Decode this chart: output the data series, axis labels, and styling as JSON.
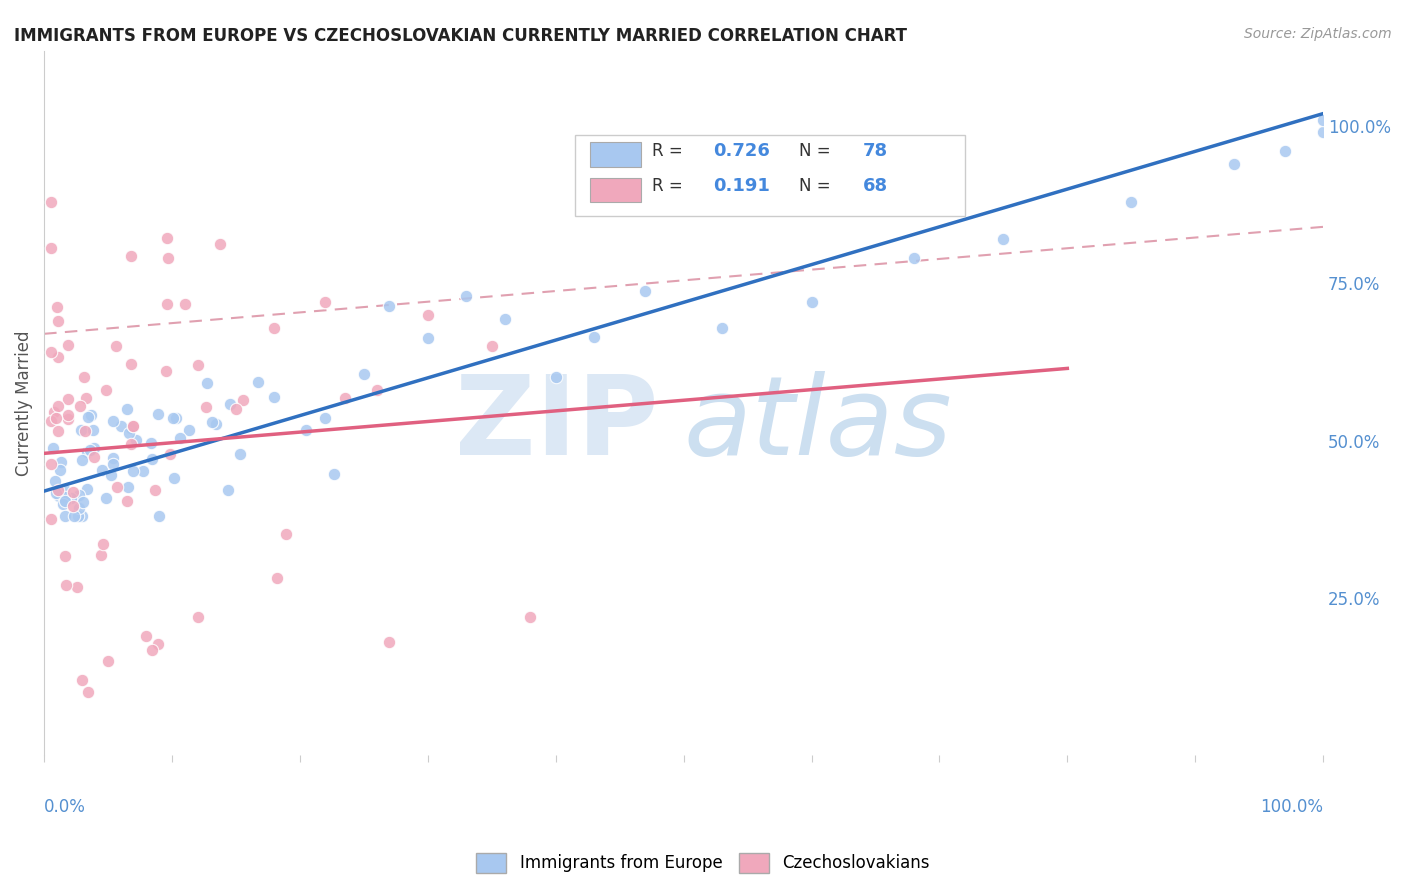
{
  "title": "IMMIGRANTS FROM EUROPE VS CZECHOSLOVAKIAN CURRENTLY MARRIED CORRELATION CHART",
  "source": "Source: ZipAtlas.com",
  "ylabel": "Currently Married",
  "right_yticks": [
    "100.0%",
    "75.0%",
    "50.0%",
    "25.0%"
  ],
  "right_ytick_vals": [
    1.0,
    0.75,
    0.5,
    0.25
  ],
  "legend_blue_label": "Immigrants from Europe",
  "legend_pink_label": "Czechoslovakians",
  "R_blue": 0.726,
  "N_blue": 78,
  "R_pink": 0.191,
  "N_pink": 68,
  "blue_color": "#a8c8f0",
  "pink_color": "#f0a8bc",
  "blue_line_color": "#3070c0",
  "pink_line_color": "#e06080",
  "dashed_line_color": "#e0a0b0",
  "xlim": [
    0.0,
    1.0
  ],
  "ylim": [
    0.0,
    1.12
  ],
  "background_color": "#ffffff",
  "watermark_zip_color": "#dce8f5",
  "watermark_atlas_color": "#ccdff0",
  "grid_color": "#e8e8e8"
}
